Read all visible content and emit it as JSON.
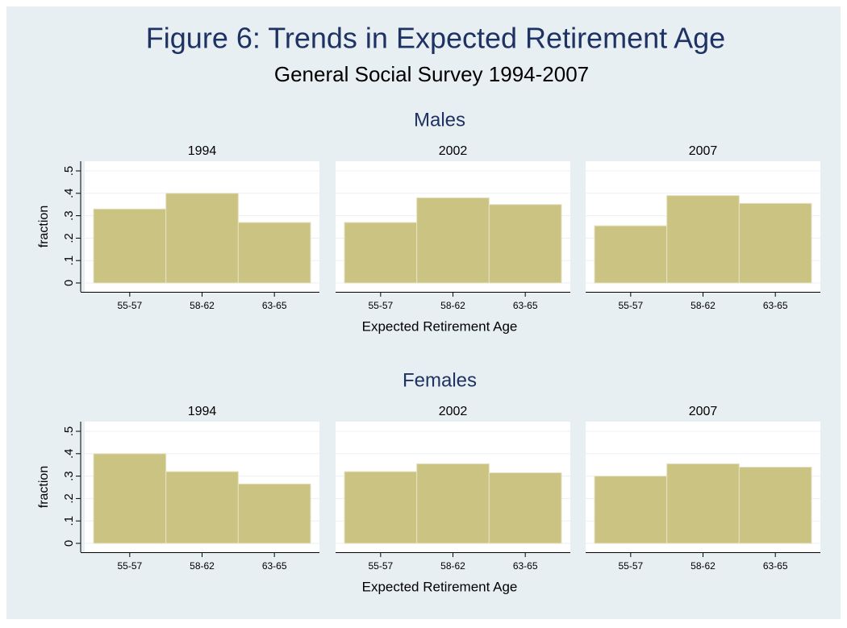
{
  "title": "Figure 6: Trends in Expected Retirement Age",
  "subtitle": "General Social Survey 1994-2007",
  "chart_data": {
    "type": "bar",
    "ylabel": "fraction",
    "xlabel": "Expected Retirement Age",
    "categories": [
      "55-57",
      "58-62",
      "63-65"
    ],
    "color": "#cbc382",
    "ylim": [
      0,
      0.5
    ],
    "yticks": [
      0,
      {
        "value": 0.1,
        "label": ".1"
      },
      {
        "value": 0.2,
        "label": ".2"
      },
      {
        "value": 0.3,
        "label": ".3"
      },
      {
        "value": 0.4,
        "label": ".4"
      },
      {
        "value": 0.5,
        "label": ".5"
      }
    ],
    "grid": true,
    "groups": [
      {
        "title": "Males",
        "panels": [
          {
            "title": "1994",
            "values": [
              0.33,
              0.4,
              0.27
            ]
          },
          {
            "title": "2002",
            "values": [
              0.27,
              0.38,
              0.35
            ]
          },
          {
            "title": "2007",
            "values": [
              0.255,
              0.39,
              0.355
            ]
          }
        ]
      },
      {
        "title": "Females",
        "panels": [
          {
            "title": "1994",
            "values": [
              0.4,
              0.32,
              0.265
            ]
          },
          {
            "title": "2002",
            "values": [
              0.32,
              0.355,
              0.315
            ]
          },
          {
            "title": "2007",
            "values": [
              0.3,
              0.355,
              0.34
            ]
          }
        ]
      }
    ]
  }
}
